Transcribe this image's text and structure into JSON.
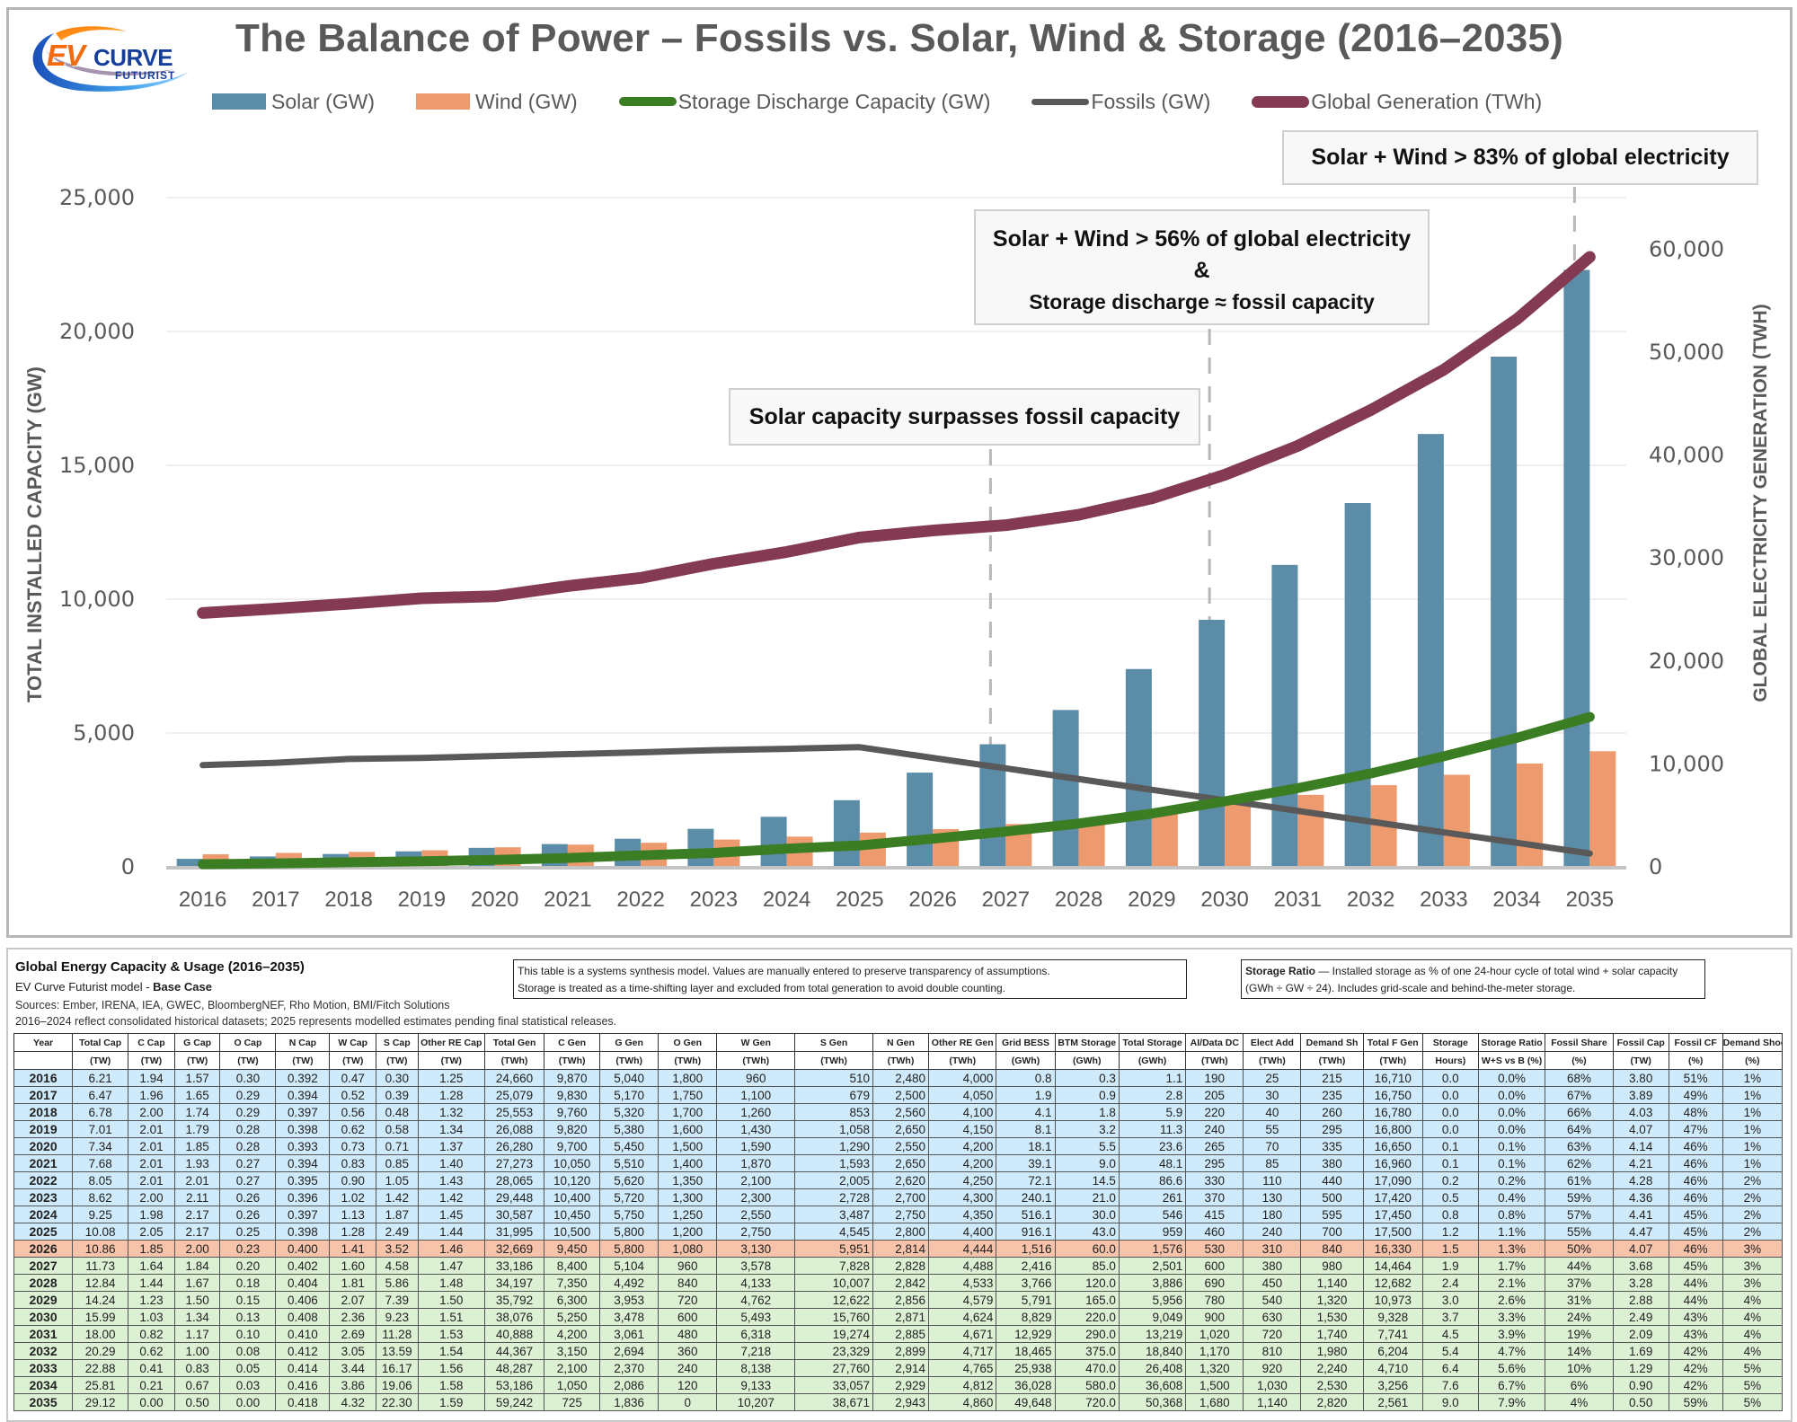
{
  "logo": {
    "primary": "EV",
    "secondary": "CURVE",
    "tagline": "FUTURIST"
  },
  "chart_data": {
    "type": "bar",
    "title": "The Balance of Power – Fossils vs. Solar, Wind & Storage (2016–2035)",
    "categories": [
      "2016",
      "2017",
      "2018",
      "2019",
      "2020",
      "2021",
      "2022",
      "2023",
      "2024",
      "2025",
      "2026",
      "2027",
      "2028",
      "2029",
      "2030",
      "2031",
      "2032",
      "2033",
      "2034",
      "2035"
    ],
    "ylabel": "TOTAL INSTALLED CAPACITY (GW)",
    "y2label": "GLOBAL ELECTRICITY GENERATION (TWH)",
    "ylim": [
      0,
      25000
    ],
    "y2lim": [
      0,
      65000
    ],
    "yticks": [
      "0",
      "5,000",
      "10,000",
      "15,000",
      "20,000",
      "25,000"
    ],
    "yticks_values": [
      0,
      5000,
      10000,
      15000,
      20000,
      25000
    ],
    "y2ticks": [
      "0",
      "10,000",
      "20,000",
      "30,000",
      "40,000",
      "50,000",
      "60,000"
    ],
    "y2ticks_values": [
      0,
      10000,
      20000,
      30000,
      40000,
      50000,
      60000
    ],
    "grid": true,
    "legend_position": "top",
    "series": [
      {
        "name": "Solar (GW)",
        "kind": "bar",
        "axis": "left",
        "color": "#5b8ca8",
        "values": [
          300,
          390,
          480,
          580,
          710,
          850,
          1050,
          1420,
          1870,
          2490,
          3520,
          4580,
          5860,
          7390,
          9230,
          11280,
          13590,
          16170,
          19060,
          22300
        ]
      },
      {
        "name": "Wind (GW)",
        "kind": "bar",
        "axis": "left",
        "color": "#ee9a6f",
        "values": [
          470,
          520,
          560,
          620,
          730,
          830,
          900,
          1020,
          1130,
          1280,
          1410,
          1600,
          1810,
          2070,
          2360,
          2690,
          3050,
          3440,
          3860,
          4320
        ]
      },
      {
        "name": "Storage Discharge Capacity (GW)",
        "kind": "line",
        "axis": "left",
        "color": "#3b7d23",
        "values": [
          100,
          130,
          170,
          210,
          260,
          330,
          430,
          520,
          680,
          800,
          1050,
          1320,
          1620,
          1990,
          2450,
          2940,
          3490,
          4130,
          4820,
          5600
        ]
      },
      {
        "name": "Fossils (GW)",
        "kind": "line",
        "axis": "left",
        "color": "#595959",
        "values": [
          3800,
          3890,
          4030,
          4070,
          4140,
          4210,
          4280,
          4360,
          4410,
          4470,
          4070,
          3680,
          3280,
          2880,
          2490,
          2090,
          1690,
          1290,
          900,
          500
        ]
      },
      {
        "name": "Global Generation (TWh)",
        "kind": "line",
        "axis": "right",
        "color": "#843a52",
        "values": [
          24660,
          25079,
          25553,
          26088,
          26280,
          27273,
          28065,
          29448,
          30587,
          31995,
          32669,
          33186,
          34197,
          35792,
          38076,
          40888,
          44367,
          48287,
          53186,
          59242
        ]
      }
    ],
    "annotations": [
      {
        "id": "solar-surpasses",
        "lines": [
          "Solar capacity surpasses fossil capacity"
        ],
        "year": "2027"
      },
      {
        "id": "56-percent",
        "lines": [
          "Solar + Wind > 56% of global electricity",
          "&",
          "Storage discharge ≈ fossil capacity"
        ],
        "year": "2030"
      },
      {
        "id": "83-percent",
        "lines": [
          "Solar + Wind > 83% of global electricity"
        ],
        "year": "2035"
      }
    ]
  },
  "table": {
    "title": "Global Energy Capacity & Usage (2016–2035)",
    "subtitle_prefix": "EV Curve Futurist model  - ",
    "subtitle_bold": "Base Case",
    "sources": "Sources: Ember, IRENA, IEA, GWEC, BloombergNEF, Rho Motion, BMI/Fitch Solutions",
    "note": "2016–2024 reflect consolidated historical datasets; 2025 represents modelled estimates pending final statistical releases.",
    "note_box_1": [
      "This table is a systems synthesis model. Values are manually entered to preserve transparency of assumptions.",
      "Storage is treated as a time-shifting layer and excluded from total generation to avoid double counting."
    ],
    "note_box_2_bold": "Storage Ratio",
    "note_box_2_text": " — Installed storage as % of one 24-hour cycle of total wind + solar capacity (GWh ÷ GW ÷ 24). Includes grid-scale and behind-the-meter storage.",
    "columns": [
      {
        "h": "Year",
        "u": ""
      },
      {
        "h": "Total Cap",
        "u": "(TW)"
      },
      {
        "h": "C Cap",
        "u": "(TW)"
      },
      {
        "h": "G Cap",
        "u": "(TW)"
      },
      {
        "h": "O Cap",
        "u": "(TW)"
      },
      {
        "h": "N Cap",
        "u": "(TW)"
      },
      {
        "h": "W Cap",
        "u": "(TW)"
      },
      {
        "h": "S Cap",
        "u": "(TW)"
      },
      {
        "h": "Other RE Cap",
        "u": "(TW)"
      },
      {
        "h": "Total Gen",
        "u": "(TWh)"
      },
      {
        "h": "C Gen",
        "u": "(TWh)"
      },
      {
        "h": "G Gen",
        "u": "(TWh)"
      },
      {
        "h": "O Gen",
        "u": "(TWh)"
      },
      {
        "h": "W Gen",
        "u": "(TWh)"
      },
      {
        "h": "S Gen",
        "u": "(TWh)"
      },
      {
        "h": "N Gen",
        "u": "(TWh)"
      },
      {
        "h": "Other RE Gen",
        "u": "(TWh)"
      },
      {
        "h": "Grid BESS",
        "u": "(GWh)"
      },
      {
        "h": "BTM Storage",
        "u": "(GWh)"
      },
      {
        "h": "Total Storage",
        "u": "(GWh)"
      },
      {
        "h": "AI/Data DC",
        "u": "(TWh)"
      },
      {
        "h": "Elect Add",
        "u": "(TWh)"
      },
      {
        "h": "Demand Sh",
        "u": "(TWh)"
      },
      {
        "h": "Total F Gen",
        "u": "(TWh)"
      },
      {
        "h": "Storage",
        "u": "Hours)"
      },
      {
        "h": "Storage Ratio",
        "u": "W+S vs B (%)"
      },
      {
        "h": "Fossil Share",
        "u": "(%)"
      },
      {
        "h": "Fossil Cap",
        "u": "(TW)"
      },
      {
        "h": "Fossil CF",
        "u": "(%)"
      },
      {
        "h": "Demand Shock",
        "u": "(%)"
      }
    ],
    "rows": [
      {
        "type": "hist",
        "cells": [
          "2016",
          "6.21",
          "1.94",
          "1.57",
          "0.30",
          "0.392",
          "0.47",
          "0.30",
          "1.25",
          "24,660",
          "9,870",
          "5,040",
          "1,800",
          "960",
          "510",
          "2,480",
          "4,000",
          "0.8",
          "0.3",
          "1.1",
          "190",
          "25",
          "215",
          "16,710",
          "0.0",
          "0.0%",
          "68%",
          "3.80",
          "51%",
          "1%"
        ]
      },
      {
        "type": "hist",
        "cells": [
          "2017",
          "6.47",
          "1.96",
          "1.65",
          "0.29",
          "0.394",
          "0.52",
          "0.39",
          "1.28",
          "25,079",
          "9,830",
          "5,170",
          "1,750",
          "1,100",
          "679",
          "2,500",
          "4,050",
          "1.9",
          "0.9",
          "2.8",
          "205",
          "30",
          "235",
          "16,750",
          "0.0",
          "0.0%",
          "67%",
          "3.89",
          "49%",
          "1%"
        ]
      },
      {
        "type": "hist",
        "cells": [
          "2018",
          "6.78",
          "2.00",
          "1.74",
          "0.29",
          "0.397",
          "0.56",
          "0.48",
          "1.32",
          "25,553",
          "9,760",
          "5,320",
          "1,700",
          "1,260",
          "853",
          "2,560",
          "4,100",
          "4.1",
          "1.8",
          "5.9",
          "220",
          "40",
          "260",
          "16,780",
          "0.0",
          "0.0%",
          "66%",
          "4.03",
          "48%",
          "1%"
        ]
      },
      {
        "type": "hist",
        "cells": [
          "2019",
          "7.01",
          "2.01",
          "1.79",
          "0.28",
          "0.398",
          "0.62",
          "0.58",
          "1.34",
          "26,088",
          "9,820",
          "5,380",
          "1,600",
          "1,430",
          "1,058",
          "2,650",
          "4,150",
          "8.1",
          "3.2",
          "11.3",
          "240",
          "55",
          "295",
          "16,800",
          "0.0",
          "0.0%",
          "64%",
          "4.07",
          "47%",
          "1%"
        ]
      },
      {
        "type": "hist",
        "cells": [
          "2020",
          "7.34",
          "2.01",
          "1.85",
          "0.28",
          "0.393",
          "0.73",
          "0.71",
          "1.37",
          "26,280",
          "9,700",
          "5,450",
          "1,500",
          "1,590",
          "1,290",
          "2,550",
          "4,200",
          "18.1",
          "5.5",
          "23.6",
          "265",
          "70",
          "335",
          "16,650",
          "0.1",
          "0.1%",
          "63%",
          "4.14",
          "46%",
          "1%"
        ]
      },
      {
        "type": "hist",
        "cells": [
          "2021",
          "7.68",
          "2.01",
          "1.93",
          "0.27",
          "0.394",
          "0.83",
          "0.85",
          "1.40",
          "27,273",
          "10,050",
          "5,510",
          "1,400",
          "1,870",
          "1,593",
          "2,650",
          "4,200",
          "39.1",
          "9.0",
          "48.1",
          "295",
          "85",
          "380",
          "16,960",
          "0.1",
          "0.1%",
          "62%",
          "4.21",
          "46%",
          "1%"
        ]
      },
      {
        "type": "hist",
        "cells": [
          "2022",
          "8.05",
          "2.01",
          "2.01",
          "0.27",
          "0.395",
          "0.90",
          "1.05",
          "1.43",
          "28,065",
          "10,120",
          "5,620",
          "1,350",
          "2,100",
          "2,005",
          "2,620",
          "4,250",
          "72.1",
          "14.5",
          "86.6",
          "330",
          "110",
          "440",
          "17,090",
          "0.2",
          "0.2%",
          "61%",
          "4.28",
          "46%",
          "2%"
        ]
      },
      {
        "type": "hist",
        "cells": [
          "2023",
          "8.62",
          "2.00",
          "2.11",
          "0.26",
          "0.396",
          "1.02",
          "1.42",
          "1.42",
          "29,448",
          "10,400",
          "5,720",
          "1,300",
          "2,300",
          "2,728",
          "2,700",
          "4,300",
          "240.1",
          "21.0",
          "261",
          "370",
          "130",
          "500",
          "17,420",
          "0.5",
          "0.4%",
          "59%",
          "4.36",
          "46%",
          "2%"
        ]
      },
      {
        "type": "hist",
        "cells": [
          "2024",
          "9.25",
          "1.98",
          "2.17",
          "0.26",
          "0.397",
          "1.13",
          "1.87",
          "1.45",
          "30,587",
          "10,450",
          "5,750",
          "1,250",
          "2,550",
          "3,487",
          "2,750",
          "4,350",
          "516.1",
          "30.0",
          "546",
          "415",
          "180",
          "595",
          "17,450",
          "0.8",
          "0.8%",
          "57%",
          "4.41",
          "45%",
          "2%"
        ]
      },
      {
        "type": "hist",
        "cells": [
          "2025",
          "10.08",
          "2.05",
          "2.17",
          "0.25",
          "0.398",
          "1.28",
          "2.49",
          "1.44",
          "31,995",
          "10,500",
          "5,800",
          "1,200",
          "2,750",
          "4,545",
          "2,800",
          "4,400",
          "916.1",
          "43.0",
          "959",
          "460",
          "240",
          "700",
          "17,500",
          "1.2",
          "1.1%",
          "55%",
          "4.47",
          "45%",
          "2%"
        ]
      },
      {
        "type": "current",
        "cells": [
          "2026",
          "10.86",
          "1.85",
          "2.00",
          "0.23",
          "0.400",
          "1.41",
          "3.52",
          "1.46",
          "32,669",
          "9,450",
          "5,800",
          "1,080",
          "3,130",
          "5,951",
          "2,814",
          "4,444",
          "1,516",
          "60.0",
          "1,576",
          "530",
          "310",
          "840",
          "16,330",
          "1.5",
          "1.3%",
          "50%",
          "4.07",
          "46%",
          "3%"
        ]
      },
      {
        "type": "proj",
        "cells": [
          "2027",
          "11.73",
          "1.64",
          "1.84",
          "0.20",
          "0.402",
          "1.60",
          "4.58",
          "1.47",
          "33,186",
          "8,400",
          "5,104",
          "960",
          "3,578",
          "7,828",
          "2,828",
          "4,488",
          "2,416",
          "85.0",
          "2,501",
          "600",
          "380",
          "980",
          "14,464",
          "1.9",
          "1.7%",
          "44%",
          "3.68",
          "45%",
          "3%"
        ]
      },
      {
        "type": "proj",
        "cells": [
          "2028",
          "12.84",
          "1.44",
          "1.67",
          "0.18",
          "0.404",
          "1.81",
          "5.86",
          "1.48",
          "34,197",
          "7,350",
          "4,492",
          "840",
          "4,133",
          "10,007",
          "2,842",
          "4,533",
          "3,766",
          "120.0",
          "3,886",
          "690",
          "450",
          "1,140",
          "12,682",
          "2.4",
          "2.1%",
          "37%",
          "3.28",
          "44%",
          "3%"
        ]
      },
      {
        "type": "proj",
        "cells": [
          "2029",
          "14.24",
          "1.23",
          "1.50",
          "0.15",
          "0.406",
          "2.07",
          "7.39",
          "1.50",
          "35,792",
          "6,300",
          "3,953",
          "720",
          "4,762",
          "12,622",
          "2,856",
          "4,579",
          "5,791",
          "165.0",
          "5,956",
          "780",
          "540",
          "1,320",
          "10,973",
          "3.0",
          "2.6%",
          "31%",
          "2.88",
          "44%",
          "4%"
        ]
      },
      {
        "type": "proj",
        "cells": [
          "2030",
          "15.99",
          "1.03",
          "1.34",
          "0.13",
          "0.408",
          "2.36",
          "9.23",
          "1.51",
          "38,076",
          "5,250",
          "3,478",
          "600",
          "5,493",
          "15,760",
          "2,871",
          "4,624",
          "8,829",
          "220.0",
          "9,049",
          "900",
          "630",
          "1,530",
          "9,328",
          "3.7",
          "3.3%",
          "24%",
          "2.49",
          "43%",
          "4%"
        ]
      },
      {
        "type": "proj",
        "cells": [
          "2031",
          "18.00",
          "0.82",
          "1.17",
          "0.10",
          "0.410",
          "2.69",
          "11.28",
          "1.53",
          "40,888",
          "4,200",
          "3,061",
          "480",
          "6,318",
          "19,274",
          "2,885",
          "4,671",
          "12,929",
          "290.0",
          "13,219",
          "1,020",
          "720",
          "1,740",
          "7,741",
          "4.5",
          "3.9%",
          "19%",
          "2.09",
          "43%",
          "4%"
        ]
      },
      {
        "type": "proj",
        "cells": [
          "2032",
          "20.29",
          "0.62",
          "1.00",
          "0.08",
          "0.412",
          "3.05",
          "13.59",
          "1.54",
          "44,367",
          "3,150",
          "2,694",
          "360",
          "7,218",
          "23,329",
          "2,899",
          "4,717",
          "18,465",
          "375.0",
          "18,840",
          "1,170",
          "810",
          "1,980",
          "6,204",
          "5.4",
          "4.7%",
          "14%",
          "1.69",
          "42%",
          "4%"
        ]
      },
      {
        "type": "proj",
        "cells": [
          "2033",
          "22.88",
          "0.41",
          "0.83",
          "0.05",
          "0.414",
          "3.44",
          "16.17",
          "1.56",
          "48,287",
          "2,100",
          "2,370",
          "240",
          "8,138",
          "27,760",
          "2,914",
          "4,765",
          "25,938",
          "470.0",
          "26,408",
          "1,320",
          "920",
          "2,240",
          "4,710",
          "6.4",
          "5.6%",
          "10%",
          "1.29",
          "42%",
          "5%"
        ]
      },
      {
        "type": "proj",
        "cells": [
          "2034",
          "25.81",
          "0.21",
          "0.67",
          "0.03",
          "0.416",
          "3.86",
          "19.06",
          "1.58",
          "53,186",
          "1,050",
          "2,086",
          "120",
          "9,133",
          "33,057",
          "2,929",
          "4,812",
          "36,028",
          "580.0",
          "36,608",
          "1,500",
          "1,030",
          "2,530",
          "3,256",
          "7.6",
          "6.7%",
          "6%",
          "0.90",
          "42%",
          "5%"
        ]
      },
      {
        "type": "proj",
        "cells": [
          "2035",
          "29.12",
          "0.00",
          "0.50",
          "0.00",
          "0.418",
          "4.32",
          "22.30",
          "1.59",
          "59,242",
          "725",
          "1,836",
          "0",
          "10,207",
          "38,671",
          "2,943",
          "4,860",
          "49,648",
          "720.0",
          "50,368",
          "1,680",
          "1,140",
          "2,820",
          "2,561",
          "9.0",
          "7.9%",
          "4%",
          "0.50",
          "59%",
          "5%"
        ]
      }
    ]
  }
}
